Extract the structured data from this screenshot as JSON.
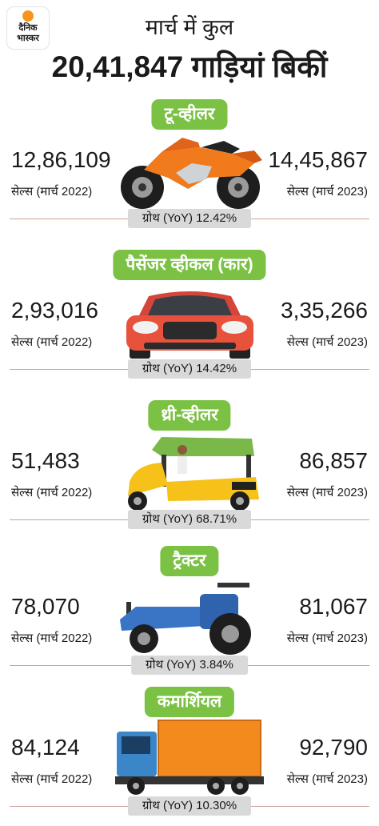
{
  "header": {
    "logo_line1": "दैनिक",
    "logo_line2": "भास्कर",
    "title_line1": "मार्च में कुल",
    "title_line2": "20,41,847 गाड़ियां बिकीं"
  },
  "chart_data": {
    "type": "table",
    "title": "मार्च में कुल 20,41,847 गाड़ियां बिकीं",
    "columns": [
      "सेल्स (मार्च 2022)",
      "सेल्स (मार्च 2023)",
      "ग्रोथ (YoY)"
    ],
    "categories": [
      "टू-व्हीलर",
      "पैसेंजर व्हीकल (कार)",
      "थ्री-व्हीलर",
      "ट्रैक्टर",
      "कमार्शियल"
    ],
    "series": [
      {
        "name": "सेल्स (मार्च 2022)",
        "values": [
          1286109,
          293016,
          51483,
          78070,
          84124
        ]
      },
      {
        "name": "सेल्स (मार्च 2023)",
        "values": [
          1445867,
          335266,
          86857,
          81067,
          92790
        ]
      },
      {
        "name": "ग्रोथ (YoY)",
        "values": [
          12.42,
          14.42,
          68.71,
          3.84,
          10.3
        ]
      }
    ]
  },
  "sections": [
    {
      "name": "टू-व्हीलर",
      "v2022": "12,86,109",
      "label2022": "सेल्स (मार्च 2022)",
      "v2023": "14,45,867",
      "label2023": "सेल्स (मार्च 2023)",
      "growth": "ग्रोथ (YoY) 12.42%",
      "icon": "motorcycle-icon",
      "color": "#f07a1c"
    },
    {
      "name": "पैसेंजर व्हीकल (कार)",
      "v2022": "2,93,016",
      "label2022": "सेल्स (मार्च 2022)",
      "v2023": "3,35,266",
      "label2023": "सेल्स (मार्च 2023)",
      "growth": "ग्रोथ (YoY) 14.42%",
      "icon": "car-icon",
      "color": "#e8523c"
    },
    {
      "name": "थ्री-व्हीलर",
      "v2022": "51,483",
      "label2022": "सेल्स (मार्च 2022)",
      "v2023": "86,857",
      "label2023": "सेल्स (मार्च 2023)",
      "growth": "ग्रोथ (YoY) 68.71%",
      "icon": "auto-rickshaw-icon",
      "color": "#f6c21a"
    },
    {
      "name": "ट्रैक्टर",
      "v2022": "78,070",
      "label2022": "सेल्स (मार्च 2022)",
      "v2023": "81,067",
      "label2023": "सेल्स (मार्च 2023)",
      "growth": "ग्रोथ (YoY) 3.84%",
      "icon": "tractor-icon",
      "color": "#3a74c4"
    },
    {
      "name": "कमार्शियल",
      "v2022": "84,124",
      "label2022": "सेल्स (मार्च 2022)",
      "v2023": "92,790",
      "label2023": "सेल्स (मार्च 2023)",
      "growth": "ग्रोथ (YoY) 10.30%",
      "icon": "truck-icon",
      "color": "#f28a1e"
    }
  ],
  "colors": {
    "pill": "#7bc144",
    "growth_bg": "#d9d9d9",
    "rule": "#c9a39a"
  }
}
